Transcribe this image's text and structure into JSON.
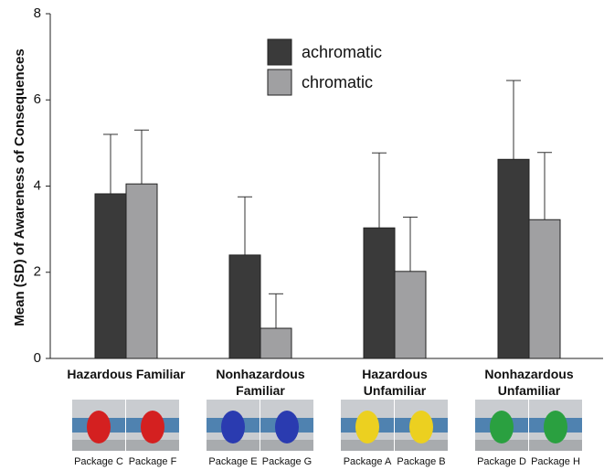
{
  "chart_data": {
    "type": "bar",
    "ylabel": "Mean (SD) of Awareness of Consequences",
    "categories": [
      "Hazardous Familiar",
      "Nonhazardous Familiar",
      "Hazardous Unfamiliar",
      "Nonhazardous Unfamiliar"
    ],
    "series": [
      {
        "name": "achromatic",
        "color": "#3a3a3a",
        "values": [
          3.82,
          2.4,
          3.03,
          4.62
        ],
        "errors": [
          1.38,
          1.35,
          1.74,
          1.83
        ]
      },
      {
        "name": "chromatic",
        "color": "#a0a0a2",
        "values": [
          4.05,
          0.7,
          2.02,
          3.22
        ],
        "errors": [
          1.25,
          0.8,
          1.26,
          1.56
        ]
      }
    ],
    "packages": [
      [
        "Package C",
        "Package F"
      ],
      [
        "Package E",
        "Package G"
      ],
      [
        "Package A",
        "Package B"
      ],
      [
        "Package D",
        "Package H"
      ]
    ],
    "ylim": [
      0,
      8
    ],
    "yticks": [
      0,
      2,
      4,
      6,
      8
    ]
  }
}
